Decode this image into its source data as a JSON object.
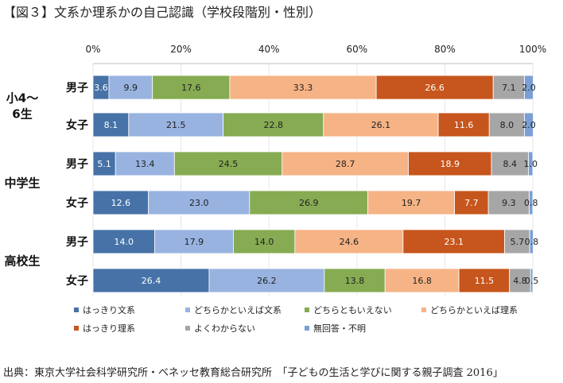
{
  "title": "【図３】文系か理系かの自己認識（学校段階別・性別）",
  "source": "出典：東京大学社会科学研究所・ベネッセ教育総合研究所　「子どもの生活と学びに関する親子調査 2016」",
  "chart_data": {
    "type": "bar",
    "orientation": "horizontal",
    "stacked": true,
    "percent_axis": true,
    "xlim": [
      0,
      100
    ],
    "xticks": [
      "0%",
      "20%",
      "40%",
      "60%",
      "80%",
      "100%"
    ],
    "groups": [
      {
        "label": "小4～\n6生",
        "rows": [
          0,
          1
        ]
      },
      {
        "label": "中学生",
        "rows": [
          2,
          3
        ]
      },
      {
        "label": "高校生",
        "rows": [
          4,
          5
        ]
      }
    ],
    "rows": [
      {
        "sex": "男子",
        "values": [
          3.6,
          9.9,
          17.6,
          33.3,
          26.6,
          7.1,
          2.0
        ]
      },
      {
        "sex": "女子",
        "values": [
          8.1,
          21.5,
          22.8,
          26.1,
          11.6,
          8.0,
          2.0
        ]
      },
      {
        "sex": "男子",
        "values": [
          5.1,
          13.4,
          24.5,
          28.7,
          18.9,
          8.4,
          1.0
        ]
      },
      {
        "sex": "女子",
        "values": [
          12.6,
          23.0,
          26.9,
          19.7,
          7.7,
          9.3,
          0.8
        ]
      },
      {
        "sex": "男子",
        "values": [
          14.0,
          17.9,
          14.0,
          24.6,
          23.1,
          5.7,
          0.8
        ]
      },
      {
        "sex": "女子",
        "values": [
          26.4,
          26.2,
          13.8,
          16.8,
          11.5,
          4.8,
          0.5
        ]
      }
    ],
    "series": [
      {
        "name": "はっきり文系",
        "color": "#4672a8"
      },
      {
        "name": "どちらかといえば文系",
        "color": "#98b3e0"
      },
      {
        "name": "どちらともいえない",
        "color": "#86ab52"
      },
      {
        "name": "どちらかといえば理系",
        "color": "#f6b385"
      },
      {
        "name": "はっきり理系",
        "color": "#c6561d"
      },
      {
        "name": "よくわからない",
        "color": "#a6a6a6"
      },
      {
        "name": "無回答・不明",
        "color": "#7a9fd6"
      }
    ],
    "legend_position": "bottom"
  }
}
